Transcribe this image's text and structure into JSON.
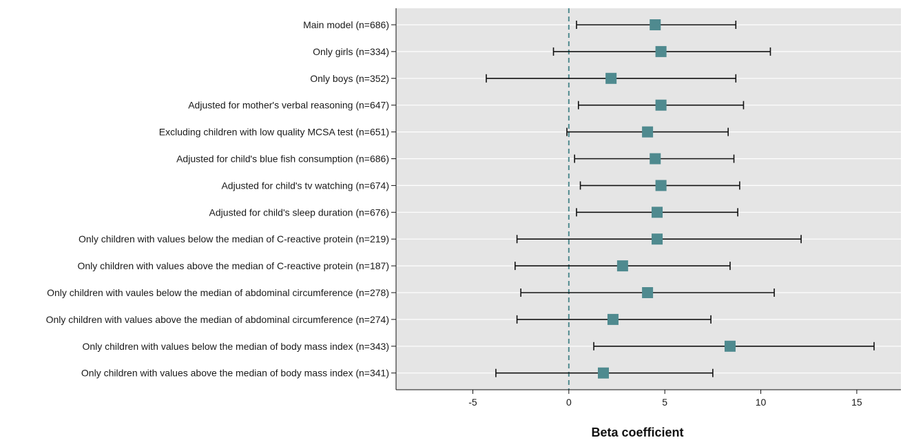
{
  "chart_data": {
    "type": "forest",
    "title": "",
    "xlabel": "Beta coefficient",
    "ylabel": "",
    "xlim": [
      -9,
      17.3
    ],
    "xticks": [
      -5,
      0,
      5,
      10,
      15
    ],
    "xtick_labels": [
      "-5",
      "0",
      "5",
      "10",
      "15"
    ],
    "reference_line": 0,
    "grid": true,
    "legend": "none",
    "colors": {
      "panel_background": "#e5e5e5",
      "gridline": "#ffffff",
      "marker": "#4f8a8f",
      "whisker": "#111111",
      "reference_line": "#4f8a8f"
    },
    "rows": [
      {
        "label": "Main model (n=686)",
        "estimate": 4.5,
        "lower": 0.4,
        "upper": 8.7
      },
      {
        "label": "Only girls (n=334)",
        "estimate": 4.8,
        "lower": -0.8,
        "upper": 10.5
      },
      {
        "label": "Only boys (n=352)",
        "estimate": 2.2,
        "lower": -4.3,
        "upper": 8.7
      },
      {
        "label": "Adjusted for mother's verbal reasoning (n=647)",
        "estimate": 4.8,
        "lower": 0.5,
        "upper": 9.1
      },
      {
        "label": "Excluding children with low quality MCSA test (n=651)",
        "estimate": 4.1,
        "lower": -0.1,
        "upper": 8.3
      },
      {
        "label": "Adjusted for child's blue fish consumption (n=686)",
        "estimate": 4.5,
        "lower": 0.3,
        "upper": 8.6
      },
      {
        "label": "Adjusted for child's tv watching (n=674)",
        "estimate": 4.8,
        "lower": 0.6,
        "upper": 8.9
      },
      {
        "label": "Adjusted for child's sleep duration (n=676)",
        "estimate": 4.6,
        "lower": 0.4,
        "upper": 8.8
      },
      {
        "label": "Only children with values below the median of C-reactive protein (n=219)",
        "estimate": 4.6,
        "lower": -2.7,
        "upper": 12.1
      },
      {
        "label": "Only children with values above the median of C-reactive protein (n=187)",
        "estimate": 2.8,
        "lower": -2.8,
        "upper": 8.4
      },
      {
        "label": "Only children with vaules below the median of abdominal circumference (n=278)",
        "estimate": 4.1,
        "lower": -2.5,
        "upper": 10.7
      },
      {
        "label": "Only children with values above the median of abdominal circumference (n=274)",
        "estimate": 2.3,
        "lower": -2.7,
        "upper": 7.4
      },
      {
        "label": "Only children with values below the median of body mass index (n=343)",
        "estimate": 8.4,
        "lower": 1.3,
        "upper": 15.9
      },
      {
        "label": "Only children with values above the median of body mass index (n=341)",
        "estimate": 1.8,
        "lower": -3.8,
        "upper": 7.5
      }
    ]
  }
}
